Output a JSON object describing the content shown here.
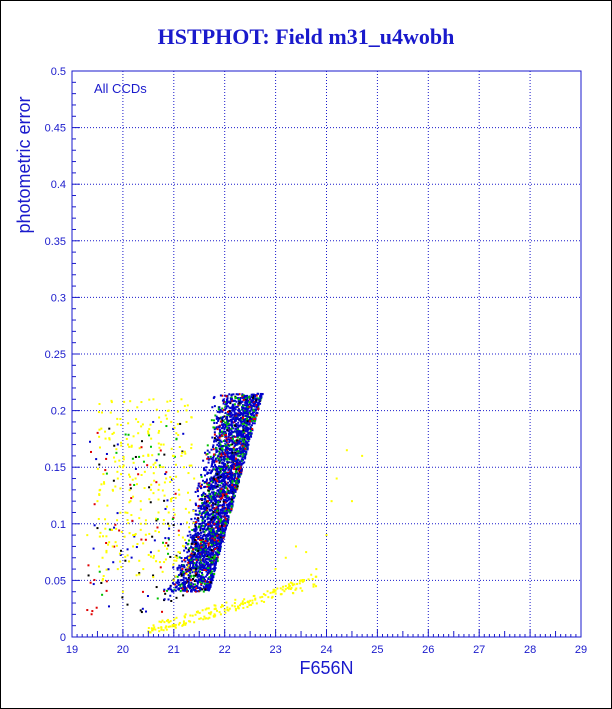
{
  "chart_data": {
    "type": "scatter",
    "title": "HSTPHOT: Field m31_u4wobh",
    "annotation": "All CCDs",
    "xlabel": "F656N",
    "ylabel": "photometric error",
    "xlim": [
      19,
      29
    ],
    "ylim": [
      0,
      0.5
    ],
    "x_ticks": [
      "19",
      "20",
      "21",
      "22",
      "23",
      "24",
      "25",
      "26",
      "27",
      "28",
      "29"
    ],
    "y_ticks": [
      "0",
      "0.05",
      "0.1",
      "0.15",
      "0.2",
      "0.25",
      "0.3",
      "0.35",
      "0.4",
      "0.45",
      "0.5"
    ],
    "grid": true,
    "colors": {
      "axis": "#1a1acc",
      "title": "#1a1acc",
      "grid": "#1a1acc",
      "ccd_points": [
        "#0000cc",
        "#00c000",
        "#e00000",
        "#000000"
      ],
      "outlier_points": "#ffff00"
    },
    "series": [
      {
        "color": "#ffff00",
        "x": [
          19.3,
          19.5,
          19.6,
          19.7,
          19.8,
          19.9,
          20.0,
          20.05,
          20.1,
          20.2,
          20.25,
          20.3,
          20.35,
          20.4,
          20.45,
          20.5,
          20.55,
          20.6,
          20.65,
          20.7,
          20.75,
          20.8,
          20.85,
          20.9,
          20.95,
          21.0,
          21.05,
          21.1,
          21.15,
          21.2,
          21.25,
          21.3,
          21.35,
          21.4,
          19.6,
          19.8,
          20.0,
          20.2,
          20.4,
          20.6,
          20.8,
          21.0,
          21.2,
          20.1,
          20.3,
          20.5,
          20.7,
          20.9,
          21.1,
          21.3,
          19.9,
          20.15,
          20.35,
          20.55,
          20.75,
          20.95,
          21.15,
          20.5,
          20.6,
          20.7,
          20.8,
          20.9,
          21.0,
          21.1,
          21.2,
          21.3,
          21.4,
          21.5,
          21.6,
          21.7,
          21.8,
          21.9,
          22.0,
          22.1,
          22.2,
          22.3,
          22.4,
          22.5,
          22.6,
          22.7,
          22.8,
          22.9,
          23.0,
          23.1,
          23.2,
          23.3,
          23.5,
          23.7,
          21.8,
          22.2,
          22.6,
          23.0,
          23.2,
          23.4,
          23.6,
          23.8,
          24.0,
          24.1,
          24.4,
          24.7,
          24.5,
          24.2
        ],
        "y": [
          0.09,
          0.12,
          0.07,
          0.1,
          0.13,
          0.06,
          0.15,
          0.11,
          0.17,
          0.08,
          0.14,
          0.19,
          0.12,
          0.16,
          0.1,
          0.18,
          0.13,
          0.21,
          0.15,
          0.11,
          0.19,
          0.17,
          0.14,
          0.2,
          0.12,
          0.16,
          0.18,
          0.13,
          0.21,
          0.15,
          0.19,
          0.11,
          0.17,
          0.14,
          0.05,
          0.08,
          0.04,
          0.09,
          0.06,
          0.07,
          0.1,
          0.05,
          0.08,
          0.2,
          0.18,
          0.16,
          0.13,
          0.11,
          0.09,
          0.07,
          0.14,
          0.12,
          0.1,
          0.15,
          0.17,
          0.19,
          0.16,
          0.005,
          0.007,
          0.008,
          0.006,
          0.009,
          0.01,
          0.011,
          0.012,
          0.014,
          0.013,
          0.016,
          0.018,
          0.017,
          0.02,
          0.022,
          0.024,
          0.025,
          0.027,
          0.028,
          0.03,
          0.032,
          0.034,
          0.035,
          0.037,
          0.039,
          0.041,
          0.043,
          0.045,
          0.048,
          0.05,
          0.055,
          0.028,
          0.03,
          0.033,
          0.06,
          0.07,
          0.08,
          0.075,
          0.06,
          0.09,
          0.12,
          0.165,
          0.16,
          0.12,
          0.14
        ]
      }
    ]
  }
}
